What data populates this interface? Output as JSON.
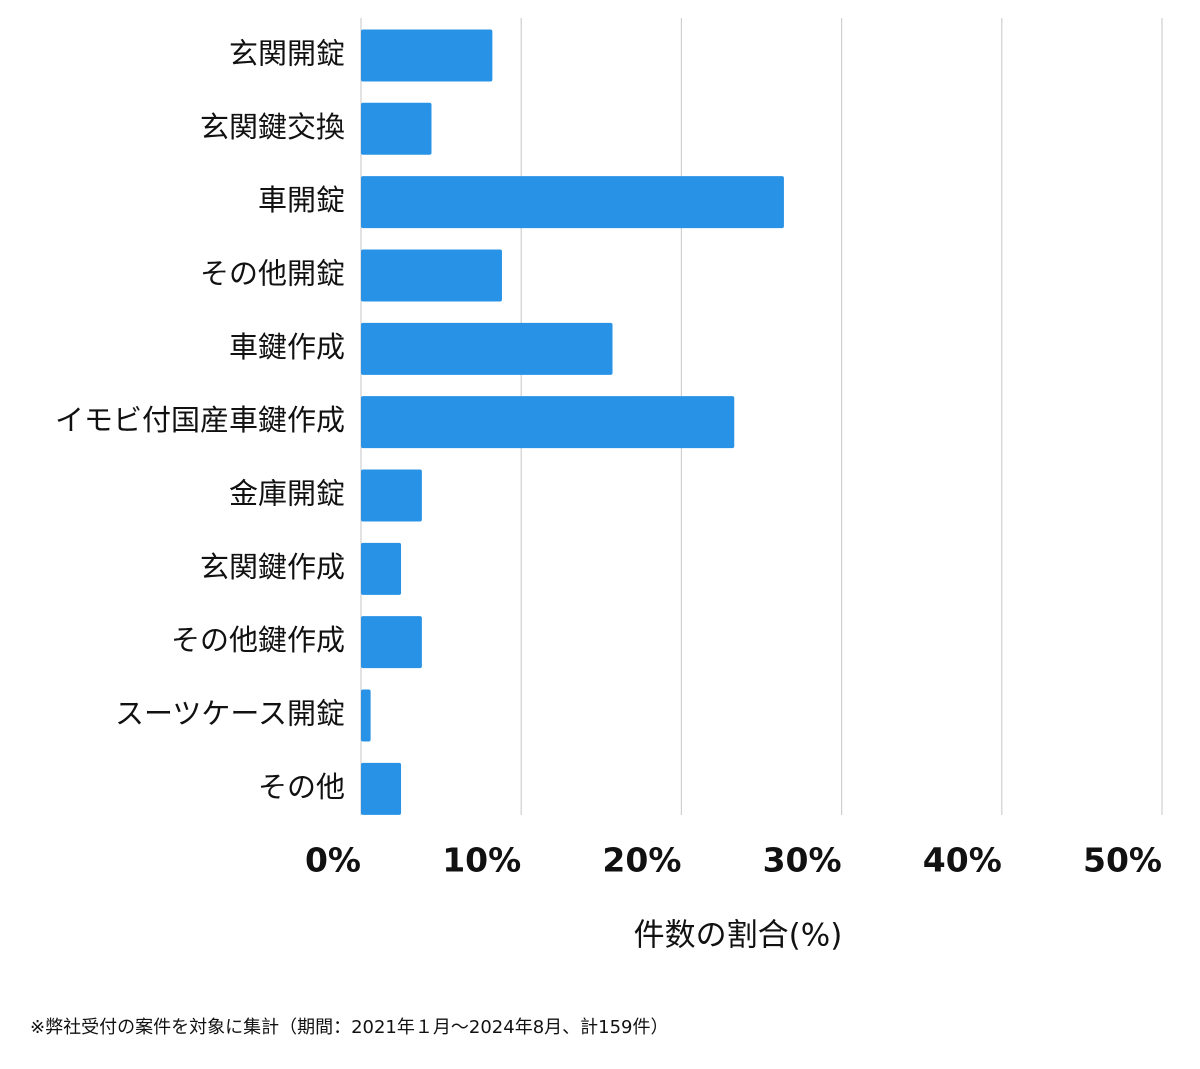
{
  "chart_data": {
    "type": "bar",
    "orientation": "horizontal",
    "categories": [
      "玄関開錠",
      "玄関鍵交換",
      "車開錠",
      "その他開錠",
      "車鍵作成",
      "イモビ付国産車鍵作成",
      "金庫開錠",
      "玄関鍵作成",
      "その他鍵作成",
      "スーツケース開錠",
      "その他"
    ],
    "values": [
      8.2,
      4.4,
      26.4,
      8.8,
      15.7,
      23.3,
      3.8,
      2.5,
      3.8,
      0.6,
      2.5
    ],
    "color": "#2893e6",
    "xlim": [
      0,
      50
    ],
    "xticks": [
      {
        "value": 0,
        "label": "0%"
      },
      {
        "value": 10,
        "label": "10%"
      },
      {
        "value": 20,
        "label": "20%"
      },
      {
        "value": 30,
        "label": "30%"
      },
      {
        "value": 40,
        "label": "40%"
      },
      {
        "value": 50,
        "label": "50%"
      }
    ],
    "xlabel": "件数の割合(%)",
    "grid": true,
    "footnote": "※弊社受付の案件を対象に集計（期間：2021年１月〜2024年8月、計159件）"
  }
}
